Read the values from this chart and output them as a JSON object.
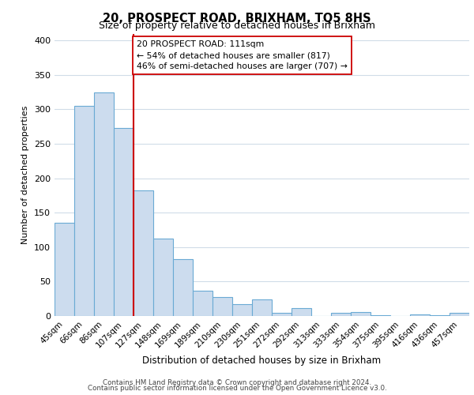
{
  "title": "20, PROSPECT ROAD, BRIXHAM, TQ5 8HS",
  "subtitle": "Size of property relative to detached houses in Brixham",
  "xlabel": "Distribution of detached houses by size in Brixham",
  "ylabel": "Number of detached properties",
  "bar_labels": [
    "45sqm",
    "66sqm",
    "86sqm",
    "107sqm",
    "127sqm",
    "148sqm",
    "169sqm",
    "189sqm",
    "210sqm",
    "230sqm",
    "251sqm",
    "272sqm",
    "292sqm",
    "313sqm",
    "333sqm",
    "354sqm",
    "375sqm",
    "395sqm",
    "416sqm",
    "436sqm",
    "457sqm"
  ],
  "bar_values": [
    135,
    305,
    325,
    273,
    182,
    112,
    83,
    37,
    27,
    17,
    24,
    5,
    11,
    0,
    5,
    6,
    1,
    0,
    2,
    1,
    5
  ],
  "bar_color": "#ccdcee",
  "bar_edge_color": "#6aaad4",
  "vline_pos": 3.5,
  "vline_color": "#cc0000",
  "annotation_title": "20 PROSPECT ROAD: 111sqm",
  "annotation_line1": "← 54% of detached houses are smaller (817)",
  "annotation_line2": "46% of semi-detached houses are larger (707) →",
  "annotation_box_facecolor": "#ffffff",
  "annotation_box_edgecolor": "#cc0000",
  "ylim": [
    0,
    410
  ],
  "yticks": [
    0,
    50,
    100,
    150,
    200,
    250,
    300,
    350,
    400
  ],
  "footer1": "Contains HM Land Registry data © Crown copyright and database right 2024.",
  "footer2": "Contains public sector information licensed under the Open Government Licence v3.0.",
  "bg_color": "#ffffff",
  "grid_color": "#d0dce8"
}
